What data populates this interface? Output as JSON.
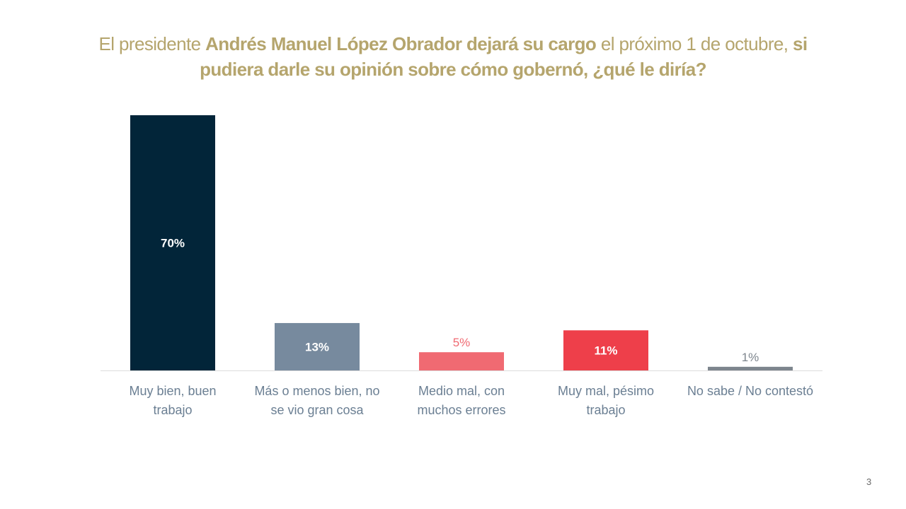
{
  "title": {
    "segments": [
      {
        "text": "El presidente ",
        "bold": false
      },
      {
        "text": "Andrés Manuel López Obrador dejará su cargo",
        "bold": true
      },
      {
        "text": " el próximo 1 de octubre, ",
        "bold": false
      },
      {
        "text": "si pudiera darle su opinión sobre cómo gobernó, ¿qué le diría?",
        "bold": true
      }
    ]
  },
  "chart_data": {
    "type": "bar",
    "title": "El presidente Andrés Manuel López Obrador dejará su cargo el próximo 1 de octubre, si pudiera darle su opinión sobre cómo gobernó, ¿qué le diría?",
    "categories": [
      [
        "Muy bien, buen",
        "trabajo"
      ],
      [
        "Más o menos bien, no",
        "se vio gran cosa"
      ],
      [
        "Medio mal, con",
        "muchos errores"
      ],
      [
        "Muy mal, pésimo",
        "trabajo"
      ],
      [
        "No sabe / No contestó"
      ]
    ],
    "values": [
      70,
      13,
      5,
      11,
      1
    ],
    "data_labels": [
      "70%",
      "13%",
      "5%",
      "11%",
      "1%"
    ],
    "colors": [
      "#022539",
      "#778a9e",
      "#f06a72",
      "#ee3f4a",
      "#7d858d"
    ],
    "label_colors": [
      "#ffffff",
      "#ffffff",
      "#f06a72",
      "#ffffff",
      "#7d858d"
    ],
    "xlabel": "",
    "ylabel": "",
    "ylim": [
      0,
      70
    ],
    "grid": false,
    "legend": "none"
  },
  "page_number": "3"
}
